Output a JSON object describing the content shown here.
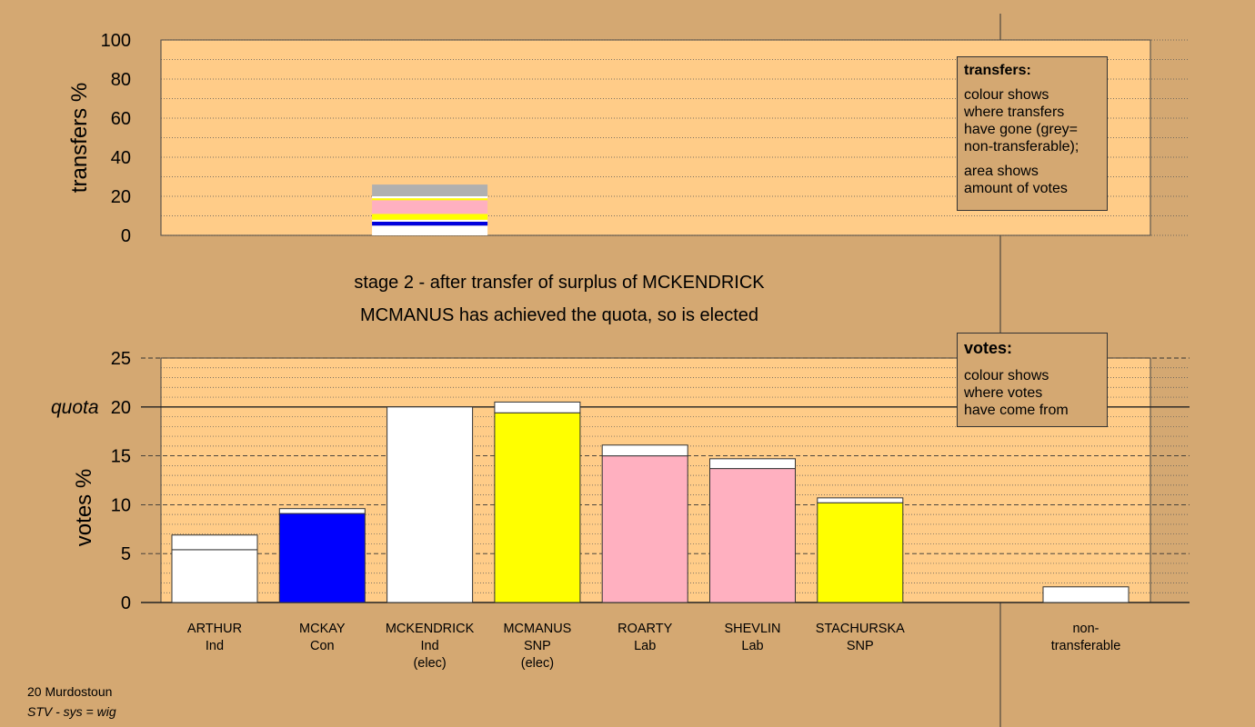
{
  "chart_data": [
    {
      "type": "bar",
      "stacked": true,
      "panel": "transfers",
      "ylabel": "transfers %",
      "ylim": [
        0,
        100
      ],
      "yticks": [
        0,
        20,
        40,
        60,
        80,
        100
      ],
      "categories": [
        "MCKENDRICK"
      ],
      "series": [
        {
          "color": "#ffffff",
          "values": [
            5
          ]
        },
        {
          "color": "#0000dd",
          "values": [
            2
          ]
        },
        {
          "color": "#ffffff",
          "values": [
            1
          ]
        },
        {
          "color": "#ffff00",
          "values": [
            3
          ]
        },
        {
          "color": "#ffb0c0",
          "values": [
            7
          ]
        },
        {
          "color": "#ffff00",
          "values": [
            1
          ]
        },
        {
          "color": "#ffffff",
          "values": [
            1
          ]
        },
        {
          "color": "#b0b0b0",
          "values": [
            6
          ]
        }
      ],
      "grid": true
    },
    {
      "type": "bar",
      "stacked": true,
      "panel": "votes",
      "ylabel": "votes %",
      "ylim": [
        0,
        25
      ],
      "yticks": [
        0,
        5,
        10,
        15,
        20,
        25
      ],
      "quota": 20,
      "quota_label": "quota",
      "categories": [
        "ARTHUR",
        "MCKAY",
        "MCKENDRICK",
        "MCMANUS",
        "ROARTY",
        "SHEVLIN",
        "STACHURSKA",
        "non-transferable"
      ],
      "category_lines": [
        [
          "ARTHUR",
          "Ind"
        ],
        [
          "MCKAY",
          "Con"
        ],
        [
          "MCKENDRICK",
          "Ind",
          "(elec)"
        ],
        [
          "MCMANUS",
          "SNP",
          "(elec)"
        ],
        [
          "ROARTY",
          "Lab"
        ],
        [
          "SHEVLIN",
          "Lab"
        ],
        [
          "STACHURSKA",
          "SNP"
        ],
        [
          "non-",
          "transferable"
        ]
      ],
      "first_pref": [
        5.4,
        9.1,
        20.0,
        19.4,
        15.0,
        13.7,
        10.2,
        0
      ],
      "first_pref_colors": [
        "#ffffff",
        "#0000ff",
        "#ffffff",
        "#ffff00",
        "#ffb0c0",
        "#ffb0c0",
        "#ffff00",
        "#ffffff"
      ],
      "transferred": [
        1.5,
        0.5,
        0,
        1.1,
        1.1,
        1.0,
        0.5,
        1.6
      ],
      "grid": true
    }
  ],
  "stage": {
    "line1": "stage 2 - after transfer of surplus of MCKENDRICK",
    "line2": "MCMANUS has achieved the quota, so is elected"
  },
  "legend_transfers": {
    "title": "transfers:",
    "lines1": [
      "colour shows",
      "where transfers",
      "have gone (grey=",
      "non-transferable);"
    ],
    "lines2": [
      "area shows",
      "amount of votes"
    ]
  },
  "legend_votes": {
    "title": "votes:",
    "lines": [
      "colour shows",
      "where votes",
      "have come from"
    ]
  },
  "footer": {
    "ward": "20 Murdostoun",
    "system": "STV - sys = wig"
  },
  "colors": {
    "background": "#d4a872",
    "plot_fill": "#ffcc88"
  }
}
